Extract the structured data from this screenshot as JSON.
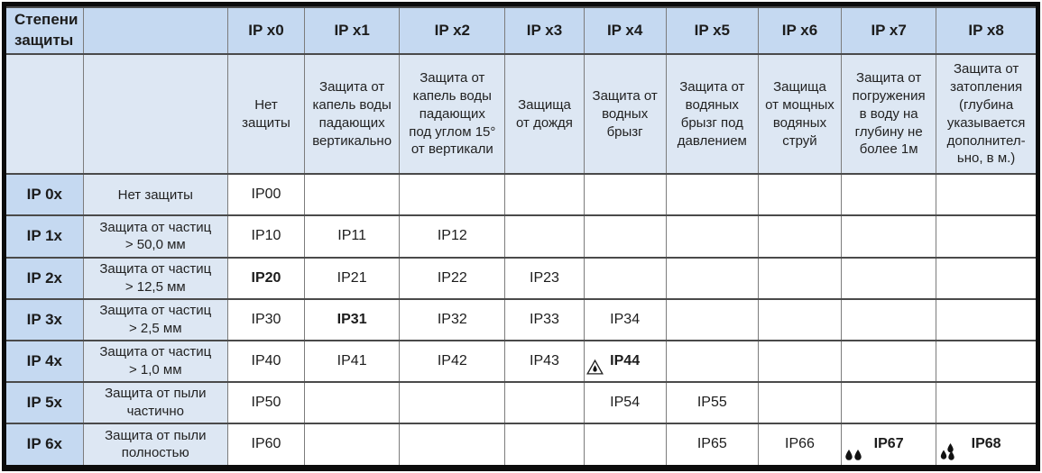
{
  "colors": {
    "header_blue": "#c5d9f1",
    "light_blue": "#dde7f3",
    "grid_dark": "#4a4a4a",
    "grid_light": "#7c7c7c",
    "frame": "#0c0c0c",
    "drop_icon": "#111111"
  },
  "table": {
    "corner_label": "Степени\nзащиты",
    "columns": [
      {
        "id": "x0",
        "label": "IP x0",
        "desc": "Нет\nзащиты"
      },
      {
        "id": "x1",
        "label": "IP x1",
        "desc": "Защита от\nкапель воды\nпадающих\nвертикально"
      },
      {
        "id": "x2",
        "label": "IP x2",
        "desc": "Защита от\nкапель воды\nпадающих\nпод углом 15°\nот вертикали"
      },
      {
        "id": "x3",
        "label": "IP x3",
        "desc": "Защища\nот дождя"
      },
      {
        "id": "x4",
        "label": "IP x4",
        "desc": "Защита от\nводных\nбрызг"
      },
      {
        "id": "x5",
        "label": "IP x5",
        "desc": "Защита от\nводяных\nбрызг под\nдавлением"
      },
      {
        "id": "x6",
        "label": "IP x6",
        "desc": "Защища\nот мощных\nводяных\nструй"
      },
      {
        "id": "x7",
        "label": "IP x7",
        "desc": "Защита от\nпогружения\nв воду на\nглубину не\nболее 1м"
      },
      {
        "id": "x8",
        "label": "IP x8",
        "desc": "Защита от\nзатопления\n(глубина\nуказывается\nдополнител-\nьно, в м.)"
      }
    ],
    "rows": [
      {
        "label": "IP 0x",
        "desc": "Нет защиты",
        "cells": [
          {
            "text": "IP00"
          },
          null,
          null,
          null,
          null,
          null,
          null,
          null,
          null
        ]
      },
      {
        "label": "IP 1x",
        "desc": "Защита от частиц\n> 50,0 мм",
        "cells": [
          {
            "text": "IP10"
          },
          {
            "text": "IP11"
          },
          {
            "text": "IP12"
          },
          null,
          null,
          null,
          null,
          null,
          null
        ]
      },
      {
        "label": "IP 2x",
        "desc": "Защита от частиц\n> 12,5 мм",
        "cells": [
          {
            "text": "IP20",
            "bold": true
          },
          {
            "text": "IP21"
          },
          {
            "text": "IP22"
          },
          {
            "text": "IP23"
          },
          null,
          null,
          null,
          null,
          null
        ]
      },
      {
        "label": "IP 3x",
        "desc": "Защита от частиц\n> 2,5 мм",
        "cells": [
          {
            "text": "IP30"
          },
          {
            "text": "IP31",
            "bold": true
          },
          {
            "text": "IP32"
          },
          {
            "text": "IP33"
          },
          {
            "text": "IP34"
          },
          null,
          null,
          null,
          null
        ]
      },
      {
        "label": "IP 4x",
        "desc": "Защита от частиц\n> 1,0 мм",
        "cells": [
          {
            "text": "IP40"
          },
          {
            "text": "IP41"
          },
          {
            "text": "IP42"
          },
          {
            "text": "IP43"
          },
          {
            "text": "IP44",
            "bold": true,
            "icon": "warning-drop-icon"
          },
          null,
          null,
          null,
          null
        ]
      },
      {
        "label": "IP 5x",
        "desc": "Защита от пыли\nчастично",
        "cells": [
          {
            "text": "IP50"
          },
          null,
          null,
          null,
          {
            "text": "IP54"
          },
          {
            "text": "IP55"
          },
          null,
          null,
          null
        ]
      },
      {
        "label": "IP 6x",
        "desc": "Защита от пыли\nполностью",
        "cells": [
          {
            "text": "IP60"
          },
          null,
          null,
          null,
          null,
          {
            "text": "IP65"
          },
          {
            "text": "IP66"
          },
          {
            "text": "IP67",
            "bold": true,
            "icon": "two-drops-icon"
          },
          {
            "text": "IP68",
            "bold": true,
            "icon": "three-drops-icon"
          }
        ]
      }
    ]
  },
  "chart_data": {
    "type": "table",
    "title": "Степени защиты",
    "column_headers": [
      "Степени защиты",
      "",
      "IP x0",
      "IP x1",
      "IP x2",
      "IP x3",
      "IP x4",
      "IP x5",
      "IP x6",
      "IP x7",
      "IP x8"
    ],
    "column_descriptions": [
      "",
      "",
      "Нет защиты",
      "Защита от капель воды падающих вертикально",
      "Защита от капель воды падающих под углом 15° от вертикали",
      "Защища от дождя",
      "Защита от водных брызг",
      "Защита от водяных брызг под давлением",
      "Защища от мощных водяных струй",
      "Защита от погружения в воду на глубину не более 1м",
      "Защита от затопления (глубина указывается дополнител-ьно, в м.)"
    ],
    "rows": [
      {
        "label": "IP 0x",
        "description": "Нет защиты",
        "values": [
          "IP00",
          "",
          "",
          "",
          "",
          "",
          "",
          "",
          ""
        ]
      },
      {
        "label": "IP 1x",
        "description": "Защита от частиц > 50,0 мм",
        "values": [
          "IP10",
          "IP11",
          "IP12",
          "",
          "",
          "",
          "",
          "",
          ""
        ]
      },
      {
        "label": "IP 2x",
        "description": "Защита от частиц > 12,5 мм",
        "values": [
          "IP20",
          "IP21",
          "IP22",
          "IP23",
          "",
          "",
          "",
          "",
          ""
        ]
      },
      {
        "label": "IP 3x",
        "description": "Защита от частиц > 2,5 мм",
        "values": [
          "IP30",
          "IP31",
          "IP32",
          "IP33",
          "IP34",
          "",
          "",
          "",
          ""
        ]
      },
      {
        "label": "IP 4x",
        "description": "Защита от частиц > 1,0 мм",
        "values": [
          "IP40",
          "IP41",
          "IP42",
          "IP43",
          "IP44",
          "",
          "",
          "",
          ""
        ]
      },
      {
        "label": "IP 5x",
        "description": "Защита от пыли частично",
        "values": [
          "IP50",
          "",
          "",
          "",
          "IP54",
          "IP55",
          "",
          "",
          ""
        ]
      },
      {
        "label": "IP 6x",
        "description": "Защита от пыли полностью",
        "values": [
          "IP60",
          "",
          "",
          "",
          "",
          "IP65",
          "IP66",
          "IP67",
          "IP68"
        ]
      }
    ],
    "bold_values": [
      "IP20",
      "IP31",
      "IP44",
      "IP67",
      "IP68"
    ],
    "icon_annotations": [
      {
        "value": "IP44",
        "icon": "warning-triangle-with-drop"
      },
      {
        "value": "IP67",
        "icon": "two-water-drops"
      },
      {
        "value": "IP68",
        "icon": "three-water-drops"
      }
    ]
  }
}
